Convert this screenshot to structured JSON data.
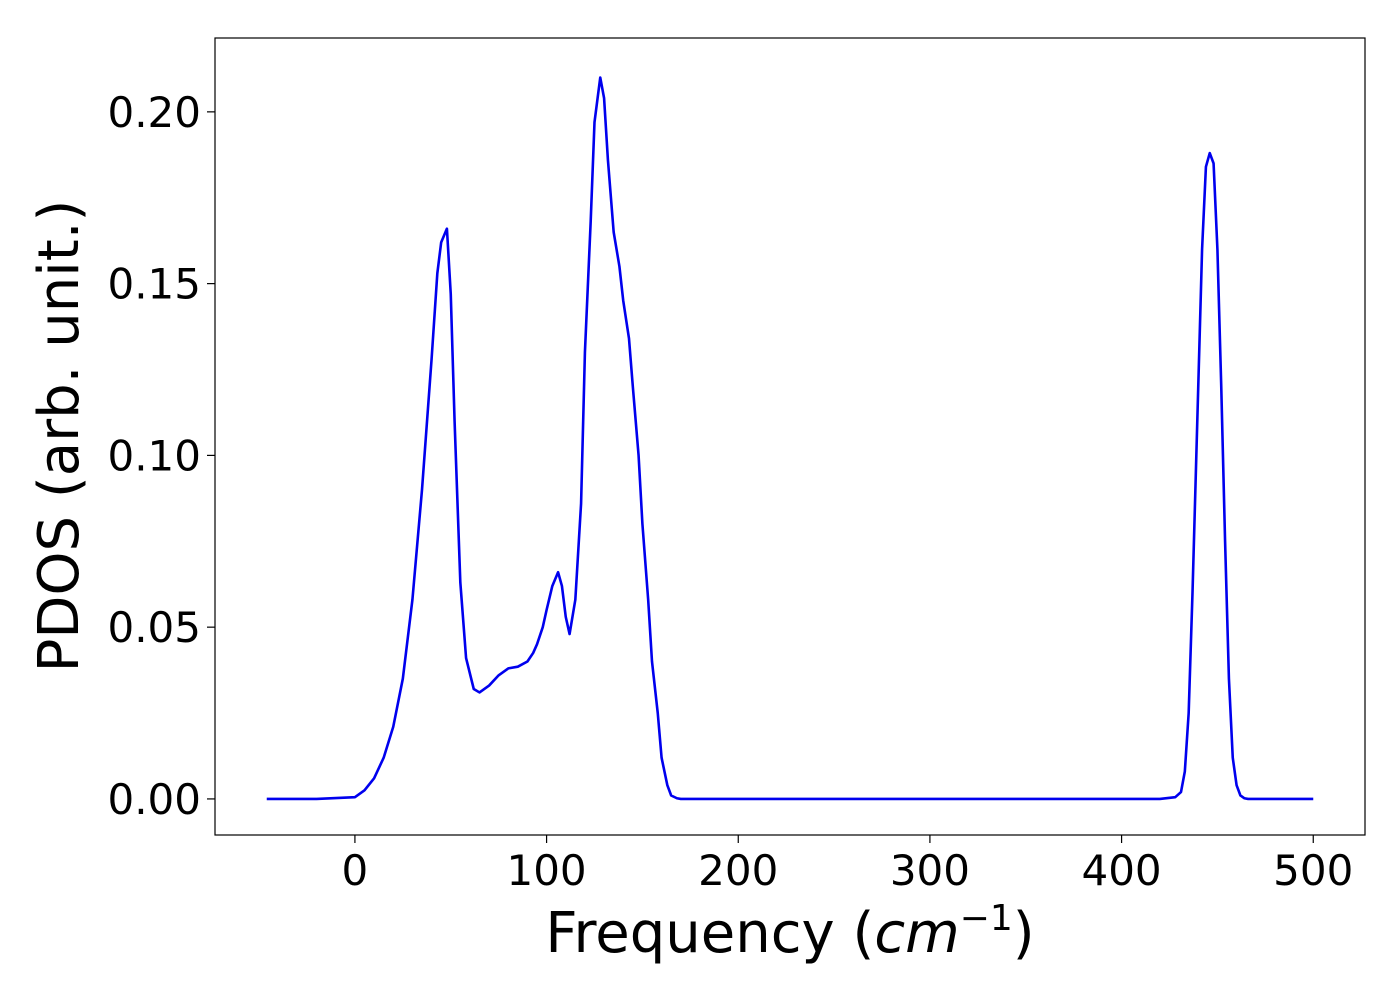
{
  "chart_data": {
    "type": "line",
    "xlabel": "Frequency (cm⁻¹)",
    "xlabel_parts": {
      "prefix": "Frequency (",
      "unit_italic": "cm",
      "superscript": "−1",
      "suffix": ")"
    },
    "ylabel": "PDOS (arb. unit.)",
    "xlim": [
      -73,
      527
    ],
    "ylim": [
      -0.0105,
      0.2215
    ],
    "xticks": [
      {
        "value": 0,
        "label": "0"
      },
      {
        "value": 100,
        "label": "100"
      },
      {
        "value": 200,
        "label": "200"
      },
      {
        "value": 300,
        "label": "300"
      },
      {
        "value": 400,
        "label": "400"
      },
      {
        "value": 500,
        "label": "500"
      }
    ],
    "yticks": [
      {
        "value": 0.0,
        "label": "0.00"
      },
      {
        "value": 0.05,
        "label": "0.05"
      },
      {
        "value": 0.1,
        "label": "0.10"
      },
      {
        "value": 0.15,
        "label": "0.15"
      },
      {
        "value": 0.2,
        "label": "0.20"
      }
    ],
    "grid": false,
    "legend": "none",
    "series": [
      {
        "color": "#0000ee",
        "x": [
          -46,
          -20,
          0,
          5,
          10,
          15,
          20,
          25,
          30,
          35,
          40,
          43,
          45,
          48,
          50,
          52,
          55,
          58,
          62,
          65,
          70,
          75,
          80,
          85,
          90,
          93,
          95,
          98,
          100,
          103,
          106,
          108,
          110,
          112,
          115,
          118,
          120,
          123,
          125,
          128,
          130,
          132,
          135,
          138,
          140,
          143,
          145,
          148,
          150,
          153,
          155,
          158,
          160,
          163,
          165,
          168,
          170,
          175,
          200,
          250,
          300,
          350,
          400,
          420,
          428,
          431,
          433,
          435,
          437,
          440,
          442,
          444,
          446,
          448,
          450,
          452,
          454,
          456,
          458,
          460,
          462,
          464,
          466,
          470,
          480,
          500
        ],
        "y": [
          0.0,
          0.0,
          0.0005,
          0.0025,
          0.006,
          0.012,
          0.021,
          0.035,
          0.058,
          0.09,
          0.128,
          0.153,
          0.162,
          0.166,
          0.147,
          0.11,
          0.063,
          0.041,
          0.032,
          0.031,
          0.033,
          0.036,
          0.038,
          0.0385,
          0.04,
          0.0425,
          0.045,
          0.05,
          0.055,
          0.062,
          0.066,
          0.062,
          0.053,
          0.048,
          0.058,
          0.086,
          0.13,
          0.168,
          0.197,
          0.21,
          0.204,
          0.186,
          0.165,
          0.155,
          0.145,
          0.134,
          0.12,
          0.1,
          0.08,
          0.058,
          0.04,
          0.025,
          0.012,
          0.004,
          0.001,
          0.0002,
          0.0,
          0.0,
          0.0,
          0.0,
          0.0,
          0.0,
          0.0,
          0.0,
          0.0005,
          0.002,
          0.008,
          0.025,
          0.06,
          0.12,
          0.16,
          0.184,
          0.188,
          0.185,
          0.16,
          0.12,
          0.075,
          0.035,
          0.012,
          0.004,
          0.001,
          0.0002,
          0.0,
          0.0,
          0.0,
          0.0
        ]
      }
    ]
  }
}
